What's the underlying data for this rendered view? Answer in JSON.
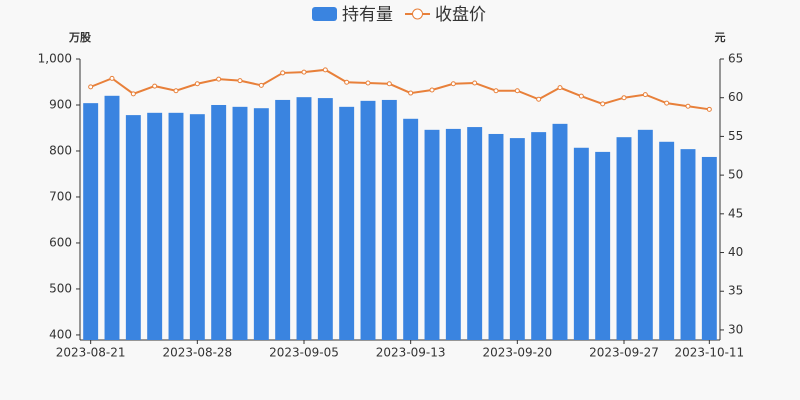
{
  "chart_data": {
    "type": "bar_line",
    "y_label": "万股",
    "y2_label": "元",
    "categories": [
      "2023-08-21",
      null,
      null,
      null,
      null,
      "2023-08-28",
      null,
      null,
      null,
      null,
      "2023-09-05",
      null,
      null,
      null,
      null,
      "2023-09-13",
      null,
      null,
      null,
      null,
      "2023-09-20",
      null,
      null,
      null,
      null,
      "2023-09-27",
      null,
      null,
      null,
      "2023-10-11"
    ],
    "series": [
      {
        "name": "持有量",
        "color": "#3a84e0",
        "type": "bar",
        "values": [
          904,
          920,
          878,
          883,
          883,
          880,
          900,
          896,
          893,
          911,
          917,
          915,
          896,
          909,
          911,
          870,
          846,
          848,
          852,
          837,
          828,
          841,
          859,
          807,
          798,
          830,
          846,
          820,
          804,
          787
        ]
      },
      {
        "name": "收盘价",
        "color": "#e8803a",
        "type": "line",
        "axis": "y2",
        "values": [
          61.4,
          62.5,
          60.5,
          61.5,
          60.9,
          61.8,
          62.4,
          62.2,
          61.6,
          63.2,
          63.3,
          63.6,
          62.0,
          61.9,
          61.8,
          60.6,
          61.0,
          61.8,
          61.9,
          60.9,
          60.9,
          59.8,
          61.3,
          60.2,
          59.2,
          60.0,
          60.4,
          59.3,
          58.9,
          58.5
        ]
      }
    ],
    "ylim": [
      389,
      1000
    ],
    "yticks": [
      400,
      500,
      600,
      700,
      800,
      900,
      {
        "value": 1000,
        "label": "1,000"
      }
    ],
    "y2lim": [
      28.7,
      65
    ],
    "y2ticks": [
      30,
      35,
      40,
      45,
      50,
      55,
      60,
      65
    ],
    "legend": "top"
  }
}
